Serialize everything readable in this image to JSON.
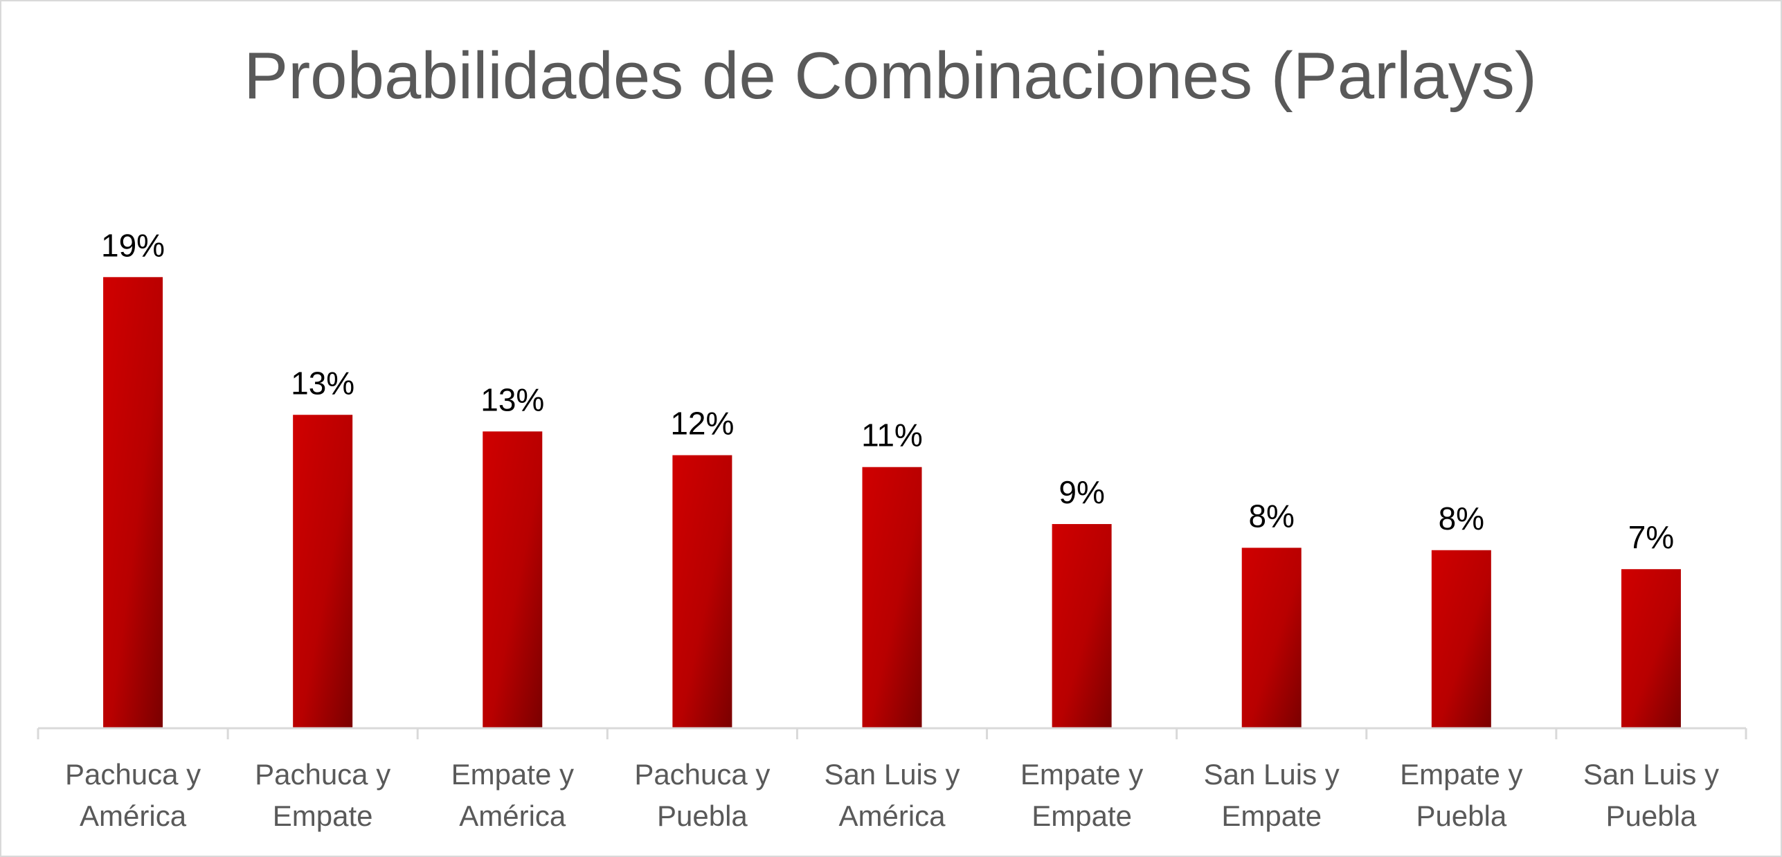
{
  "chart_data": {
    "type": "bar",
    "title": "Probabilidades de Combinaciones (Parlays)",
    "categories": [
      [
        "Pachuca y",
        "América"
      ],
      [
        "Pachuca y",
        "Empate"
      ],
      [
        "Empate y",
        "América"
      ],
      [
        "Pachuca y",
        "Puebla"
      ],
      [
        "San Luis y",
        "América"
      ],
      [
        "Empate y",
        "Empate"
      ],
      [
        "San Luis y",
        "Empate"
      ],
      [
        "Empate y",
        "Puebla"
      ],
      [
        "San Luis y",
        "Puebla"
      ]
    ],
    "values": [
      19.0,
      13.2,
      12.5,
      11.5,
      11.0,
      8.6,
      7.6,
      7.5,
      6.7
    ],
    "data_labels": [
      "19%",
      "13%",
      "13%",
      "12%",
      "11%",
      "9%",
      "8%",
      "8%",
      "7%"
    ],
    "ylim": [
      0,
      21.4
    ],
    "grid": false,
    "legend": "none",
    "colors": {
      "bar_light": "#d00000",
      "bar_dark": "#7a0000",
      "axis": "#d9d9d9",
      "title": "#595959",
      "tick_label": "#595959",
      "data_label": "#000000"
    }
  }
}
